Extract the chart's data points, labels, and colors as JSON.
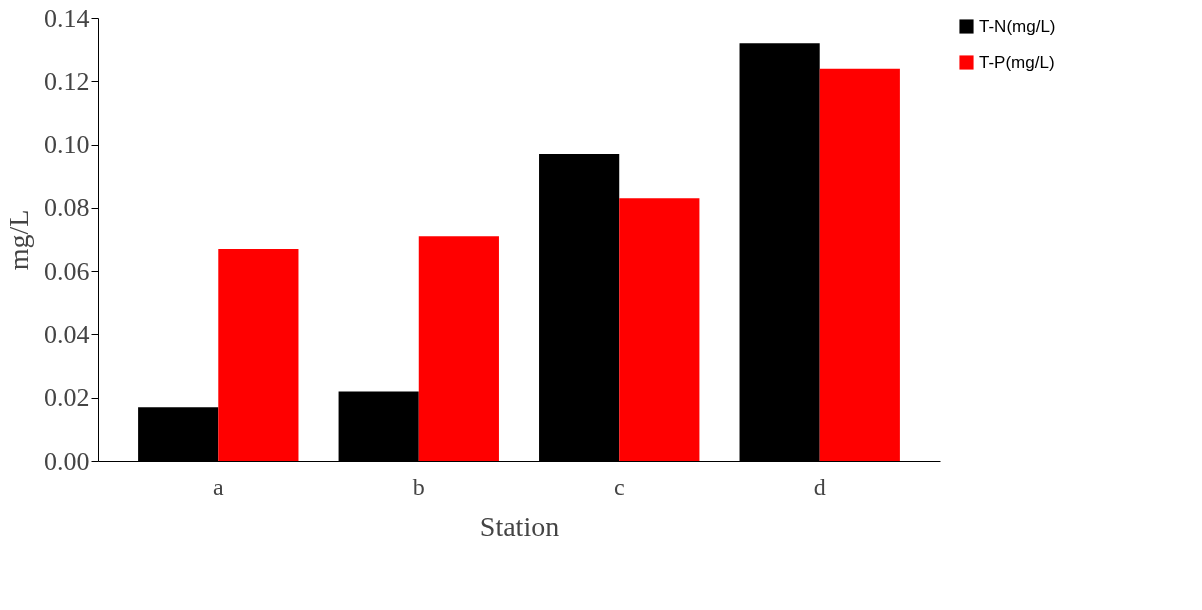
{
  "chart_data": {
    "type": "bar",
    "xlabel": "Station",
    "ylabel": "mg/L",
    "categories": [
      "a",
      "b",
      "c",
      "d"
    ],
    "series": [
      {
        "name": "T-N(mg/L)",
        "color": "#000000",
        "values": [
          0.017,
          0.022,
          0.097,
          0.132
        ]
      },
      {
        "name": "T-P(mg/L)",
        "color": "#ff0000",
        "values": [
          0.067,
          0.071,
          0.083,
          0.124
        ]
      }
    ],
    "ylim": [
      0,
      0.14
    ],
    "yticks": [
      {
        "value": 0,
        "label": "0.00"
      },
      {
        "value": 0.02,
        "label": "0.02"
      },
      {
        "value": 0.04,
        "label": "0.04"
      },
      {
        "value": 0.06,
        "label": "0.06"
      },
      {
        "value": 0.08,
        "label": "0.08"
      },
      {
        "value": 0.1,
        "label": "0.10"
      },
      {
        "value": 0.12,
        "label": "0.12"
      },
      {
        "value": 0.14,
        "label": "0.14"
      }
    ],
    "grid": false,
    "legend": "right"
  }
}
